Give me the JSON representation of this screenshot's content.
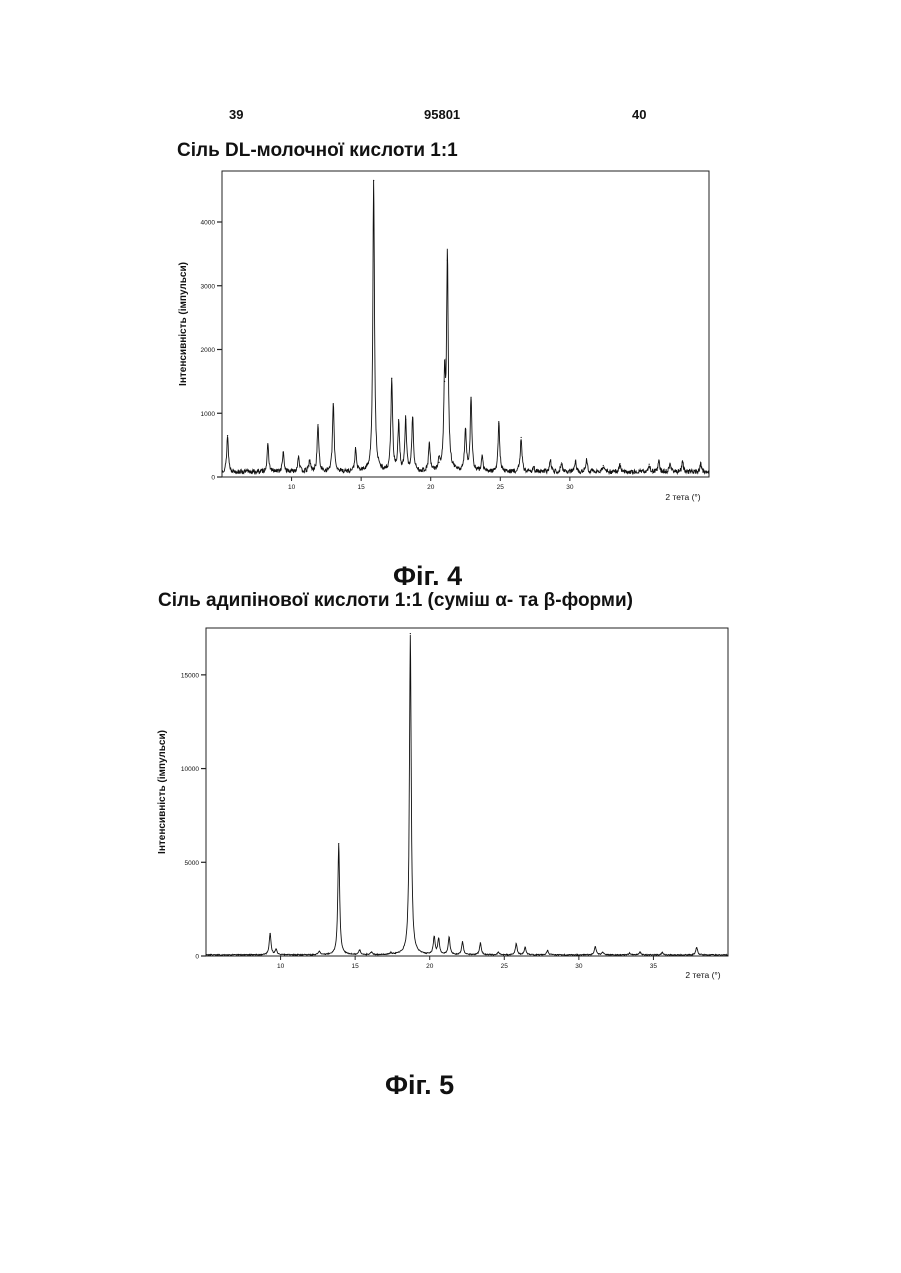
{
  "header": {
    "page_left": "39",
    "doc_number": "95801",
    "page_right": "40"
  },
  "fig4": {
    "title": "Сіль DL-молочної кислоти 1:1",
    "caption": "Фіг. 4"
  },
  "fig5": {
    "title": "Сіль адипінової кислоти 1:1 (суміш α- та β-форми)",
    "caption": "Фіг. 5"
  },
  "chart_data": [
    {
      "type": "line",
      "title": "Сіль DL-молочної кислоти 1:1",
      "xlabel": "2 тета (°)",
      "ylabel": "Інтенсивність (імпульси)",
      "xlim": [
        5,
        40
      ],
      "ylim": [
        0,
        4800
      ],
      "x_ticks": [
        10,
        15,
        20,
        25,
        30
      ],
      "y_ticks": [
        0,
        1000,
        2000,
        3000,
        4000
      ],
      "baseline": 80,
      "peaks": [
        [
          5.4,
          650
        ],
        [
          8.3,
          500
        ],
        [
          9.4,
          380
        ],
        [
          10.5,
          330
        ],
        [
          11.3,
          260
        ],
        [
          11.9,
          820
        ],
        [
          13.0,
          1150
        ],
        [
          14.6,
          420
        ],
        [
          15.9,
          4650
        ],
        [
          17.2,
          1550
        ],
        [
          17.7,
          820
        ],
        [
          18.2,
          900
        ],
        [
          18.7,
          940
        ],
        [
          19.9,
          520
        ],
        [
          20.6,
          230
        ],
        [
          21.0,
          1500
        ],
        [
          21.2,
          3400
        ],
        [
          22.5,
          750
        ],
        [
          22.9,
          1250
        ],
        [
          23.7,
          300
        ],
        [
          24.9,
          840
        ],
        [
          26.5,
          620
        ],
        [
          27.4,
          160
        ],
        [
          28.6,
          260
        ],
        [
          29.4,
          220
        ],
        [
          30.4,
          250
        ],
        [
          31.2,
          260
        ],
        [
          32.4,
          180
        ],
        [
          33.6,
          210
        ],
        [
          35.7,
          200
        ],
        [
          36.4,
          240
        ],
        [
          37.2,
          210
        ],
        [
          38.1,
          230
        ],
        [
          39.4,
          200
        ]
      ]
    },
    {
      "type": "line",
      "title": "Сіль адипінової кислоти 1:1 (суміш α- та β-форми)",
      "xlabel": "2 тета (°)",
      "ylabel": "Інтенсивність (імпульси)",
      "xlim": [
        5,
        40
      ],
      "ylim": [
        0,
        17500
      ],
      "x_ticks": [
        10,
        15,
        20,
        25,
        30,
        35
      ],
      "y_ticks": [
        0,
        5000,
        10000,
        15000
      ],
      "baseline": 60,
      "peaks": [
        [
          9.3,
          1200
        ],
        [
          9.7,
          350
        ],
        [
          12.6,
          250
        ],
        [
          13.9,
          6000
        ],
        [
          15.3,
          300
        ],
        [
          16.1,
          200
        ],
        [
          17.4,
          150
        ],
        [
          18.7,
          17200
        ],
        [
          20.3,
          1000
        ],
        [
          20.6,
          900
        ],
        [
          21.3,
          1000
        ],
        [
          22.2,
          750
        ],
        [
          23.4,
          700
        ],
        [
          24.6,
          200
        ],
        [
          25.8,
          650
        ],
        [
          26.4,
          450
        ],
        [
          27.9,
          300
        ],
        [
          31.1,
          500
        ],
        [
          31.6,
          200
        ],
        [
          33.4,
          150
        ],
        [
          34.1,
          200
        ],
        [
          35.6,
          200
        ],
        [
          37.9,
          450
        ]
      ]
    }
  ]
}
